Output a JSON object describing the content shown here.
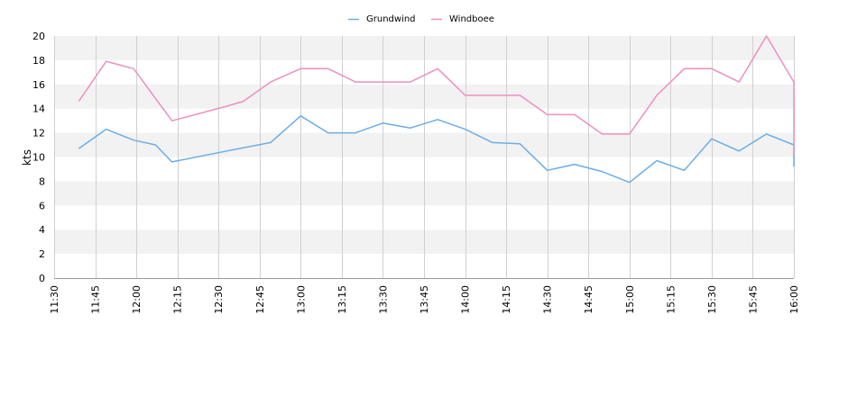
{
  "chart_data": {
    "type": "line",
    "ylabel": "kts",
    "ylim": [
      0,
      20
    ],
    "yticks": [
      0,
      2,
      4,
      6,
      8,
      10,
      12,
      14,
      16,
      18,
      20
    ],
    "xticks": [
      "11:30",
      "11:45",
      "12:00",
      "12:15",
      "12:30",
      "12:45",
      "13:00",
      "13:15",
      "13:30",
      "13:45",
      "14:00",
      "14:15",
      "14:30",
      "14:45",
      "15:00",
      "15:15",
      "15:30",
      "15:45",
      "16:00"
    ],
    "xlim": [
      "11:30",
      "16:00"
    ],
    "grid": "vertical lines at x ticks, alternating horizontal bands",
    "legend": "top-center",
    "series": [
      {
        "name": "Grundwind",
        "color": "#6aaee8",
        "x": [
          "11:39",
          "11:49",
          "11:59",
          "12:07",
          "12:13",
          "12:33",
          "12:49",
          "13:00",
          "13:10",
          "13:20",
          "13:30",
          "13:40",
          "13:50",
          "14:00",
          "14:10",
          "14:20",
          "14:30",
          "14:40",
          "14:50",
          "15:00",
          "15:10",
          "15:20",
          "15:30",
          "15:40",
          "15:50",
          "16:00",
          "16:00"
        ],
        "values": [
          10.7,
          12.3,
          11.4,
          11.0,
          9.6,
          10.5,
          11.2,
          13.4,
          12.0,
          12.0,
          12.8,
          12.4,
          13.1,
          12.3,
          11.2,
          11.1,
          8.9,
          9.4,
          8.8,
          7.9,
          9.7,
          8.9,
          11.5,
          10.5,
          11.9,
          11.0,
          9.2
        ]
      },
      {
        "name": "Windboee",
        "color": "#ee8fbf",
        "x": [
          "11:39",
          "11:49",
          "11:59",
          "12:13",
          "12:33",
          "12:39",
          "12:49",
          "13:00",
          "13:10",
          "13:20",
          "13:30",
          "13:40",
          "13:50",
          "14:00",
          "14:10",
          "14:20",
          "14:30",
          "14:40",
          "14:50",
          "15:00",
          "15:10",
          "15:20",
          "15:30",
          "15:40",
          "15:50",
          "16:00",
          "16:00"
        ],
        "values": [
          14.6,
          17.9,
          17.3,
          13.0,
          14.2,
          14.6,
          16.2,
          17.3,
          17.3,
          16.2,
          16.2,
          16.2,
          17.3,
          15.1,
          15.1,
          15.1,
          13.5,
          13.5,
          11.9,
          11.9,
          15.1,
          17.3,
          17.3,
          16.2,
          20.0,
          16.2,
          10.2
        ]
      }
    ]
  }
}
